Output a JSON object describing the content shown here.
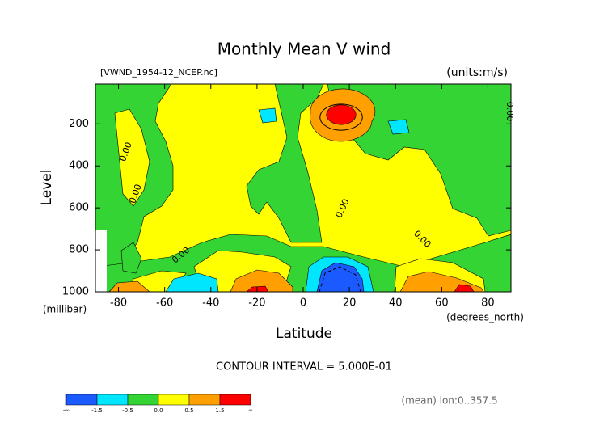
{
  "chart_data": {
    "type": "contour",
    "title": "Monthly Mean V wind",
    "subtitle": "[VWND_1954-12_NCEP.nc]",
    "units": "(units:m/s)",
    "x_label": "Latitude",
    "x_unit": "(degrees_north)",
    "y_label": "Level",
    "y_unit": "(millibar)",
    "xlim": [
      -90,
      90
    ],
    "xticks": [
      -80,
      -60,
      -40,
      -20,
      0,
      20,
      40,
      60,
      80
    ],
    "ylim": [
      1000,
      10
    ],
    "yticks": [
      200,
      400,
      600,
      800,
      1000
    ],
    "contour_interval": "CONTOUR INTERVAL = 5.000E-01",
    "contour_labels": [
      "0.00",
      "0.00",
      "0.00",
      "0.00",
      "0.00",
      "0.00"
    ],
    "footnote": "(mean) lon:0..357.5",
    "colorbar": {
      "labels": [
        "-∞",
        "-1.5",
        "-0.5",
        "0.0",
        "0.5",
        "1.5",
        "∞"
      ],
      "colors": [
        "#1a5aff",
        "#00e6ff",
        "#33d433",
        "#ffff00",
        "#ff9f00",
        "#ff0000"
      ]
    }
  }
}
